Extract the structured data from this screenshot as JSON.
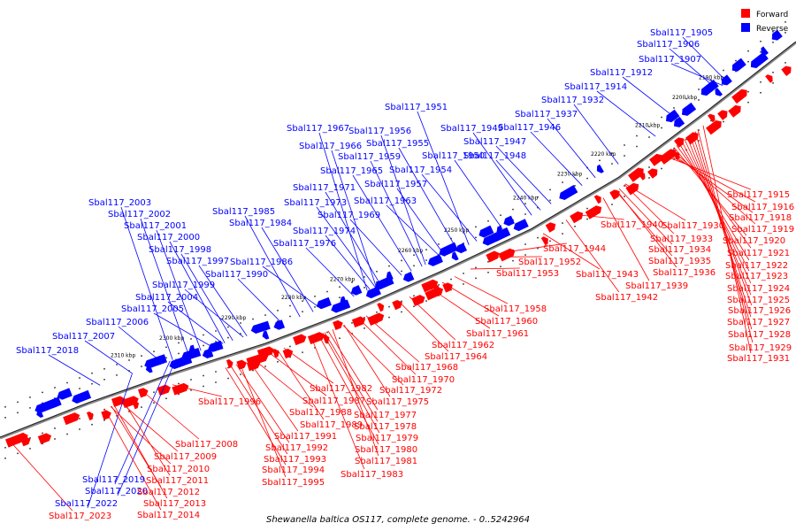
{
  "caption": "Shewanella baltica OS117, complete genome. - 0..5242964",
  "legend": {
    "forward": {
      "label": "Forward",
      "color": "#ff0000"
    },
    "reverse": {
      "label": "Reverse",
      "color": "#0000ff"
    }
  },
  "tick_labels": [
    "2190 kbp",
    "2200 kbp",
    "2210 kbp",
    "2220 kbp",
    "2230 kbp",
    "2240 kbp",
    "2250 kbp",
    "2260 kbp",
    "2270 kbp",
    "2280 kbp",
    "2290 kbp",
    "2300 kbp",
    "2310 kbp"
  ],
  "reverse_genes": [
    "Sbal117_1905",
    "Sbal117_1906",
    "Sbal117_1907",
    "Sbal117_1912",
    "Sbal117_1914",
    "Sbal117_1932",
    "Sbal117_1937",
    "Sbal117_1946",
    "Sbal117_1947",
    "Sbal117_1948",
    "Sbal117_1949",
    "Sbal117_1950",
    "Sbal117_1951",
    "Sbal117_1954",
    "Sbal117_1955",
    "Sbal117_1956",
    "Sbal117_1957",
    "Sbal117_1959",
    "Sbal117_1963",
    "Sbal117_1965",
    "Sbal117_1966",
    "Sbal117_1967",
    "Sbal117_1969",
    "Sbal117_1971",
    "Sbal117_1973",
    "Sbal117_1974",
    "Sbal117_1976",
    "Sbal117_1984",
    "Sbal117_1985",
    "Sbal117_1986",
    "Sbal117_1990",
    "Sbal117_1997",
    "Sbal117_1998",
    "Sbal117_1999",
    "Sbal117_2000",
    "Sbal117_2001",
    "Sbal117_2002",
    "Sbal117_2003",
    "Sbal117_2004",
    "Sbal117_2005",
    "Sbal117_2006",
    "Sbal117_2007",
    "Sbal117_2018",
    "Sbal117_2019",
    "Sbal117_2020",
    "Sbal117_2022"
  ],
  "forward_genes": [
    "Sbal117_1915",
    "Sbal117_1916",
    "Sbal117_1918",
    "Sbal117_1919",
    "Sbal117_1920",
    "Sbal117_1921",
    "Sbal117_1922",
    "Sbal117_1923",
    "Sbal117_1924",
    "Sbal117_1925",
    "Sbal117_1926",
    "Sbal117_1927",
    "Sbal117_1928",
    "Sbal117_1929",
    "Sbal117_1930",
    "Sbal117_1931",
    "Sbal117_1933",
    "Sbal117_1934",
    "Sbal117_1935",
    "Sbal117_1936",
    "Sbal117_1939",
    "Sbal117_1940",
    "Sbal117_1942",
    "Sbal117_1943",
    "Sbal117_1944",
    "Sbal117_1952",
    "Sbal117_1953",
    "Sbal117_1958",
    "Sbal117_1960",
    "Sbal117_1961",
    "Sbal117_1962",
    "Sbal117_1964",
    "Sbal117_1968",
    "Sbal117_1970",
    "Sbal117_1972",
    "Sbal117_1975",
    "Sbal117_1977",
    "Sbal117_1978",
    "Sbal117_1979",
    "Sbal117_1980",
    "Sbal117_1981",
    "Sbal117_1982",
    "Sbal117_1983",
    "Sbal117_1987",
    "Sbal117_1988",
    "Sbal117_1989",
    "Sbal117_1991",
    "Sbal117_1992",
    "Sbal117_1993",
    "Sbal117_1994",
    "Sbal117_1995",
    "Sbal117_1996",
    "Sbal117_2008",
    "Sbal117_2009",
    "Sbal117_2010",
    "Sbal117_2011",
    "Sbal117_2012",
    "Sbal117_2013",
    "Sbal117_2014",
    "Sbal117_2023"
  ]
}
